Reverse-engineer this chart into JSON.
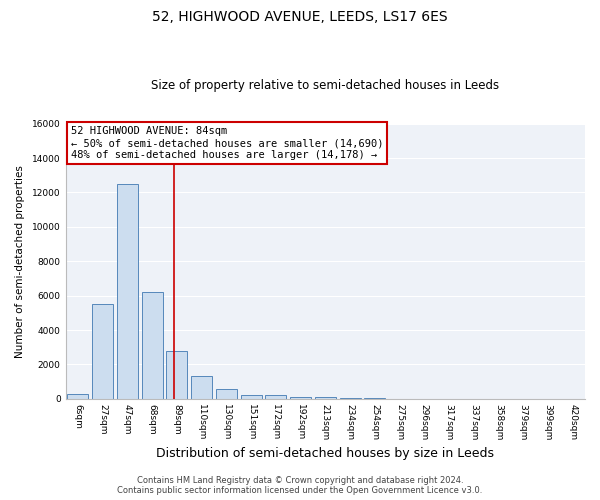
{
  "title": "52, HIGHWOOD AVENUE, LEEDS, LS17 6ES",
  "subtitle": "Size of property relative to semi-detached houses in Leeds",
  "xlabel": "Distribution of semi-detached houses by size in Leeds",
  "ylabel": "Number of semi-detached properties",
  "bar_labels": [
    "6sqm",
    "27sqm",
    "47sqm",
    "68sqm",
    "89sqm",
    "110sqm",
    "130sqm",
    "151sqm",
    "172sqm",
    "192sqm",
    "213sqm",
    "234sqm",
    "254sqm",
    "275sqm",
    "296sqm",
    "317sqm",
    "337sqm",
    "358sqm",
    "379sqm",
    "399sqm",
    "420sqm"
  ],
  "bar_heights": [
    300,
    5500,
    12500,
    6200,
    2800,
    1300,
    600,
    250,
    200,
    130,
    100,
    60,
    50,
    0,
    0,
    0,
    0,
    0,
    0,
    0,
    0
  ],
  "bar_color": "#ccddef",
  "bar_edge_color": "#5588bb",
  "vline_x_idx": 3.87,
  "vline_color": "#cc0000",
  "annotation_title": "52 HIGHWOOD AVENUE: 84sqm",
  "annotation_line1": "← 50% of semi-detached houses are smaller (14,690)",
  "annotation_line2": "48% of semi-detached houses are larger (14,178) →",
  "annotation_box_facecolor": "white",
  "annotation_box_edgecolor": "#cc0000",
  "ylim": [
    0,
    16000
  ],
  "yticks": [
    0,
    2000,
    4000,
    6000,
    8000,
    10000,
    12000,
    14000,
    16000
  ],
  "footer1": "Contains HM Land Registry data © Crown copyright and database right 2024.",
  "footer2": "Contains public sector information licensed under the Open Government Licence v3.0.",
  "bg_color": "#ffffff",
  "plot_bg_color": "#eef2f8",
  "grid_color": "#ffffff",
  "title_fontsize": 10,
  "subtitle_fontsize": 8.5,
  "xlabel_fontsize": 9,
  "ylabel_fontsize": 7.5,
  "tick_fontsize": 6.5,
  "annotation_fontsize": 7.5,
  "footer_fontsize": 6
}
